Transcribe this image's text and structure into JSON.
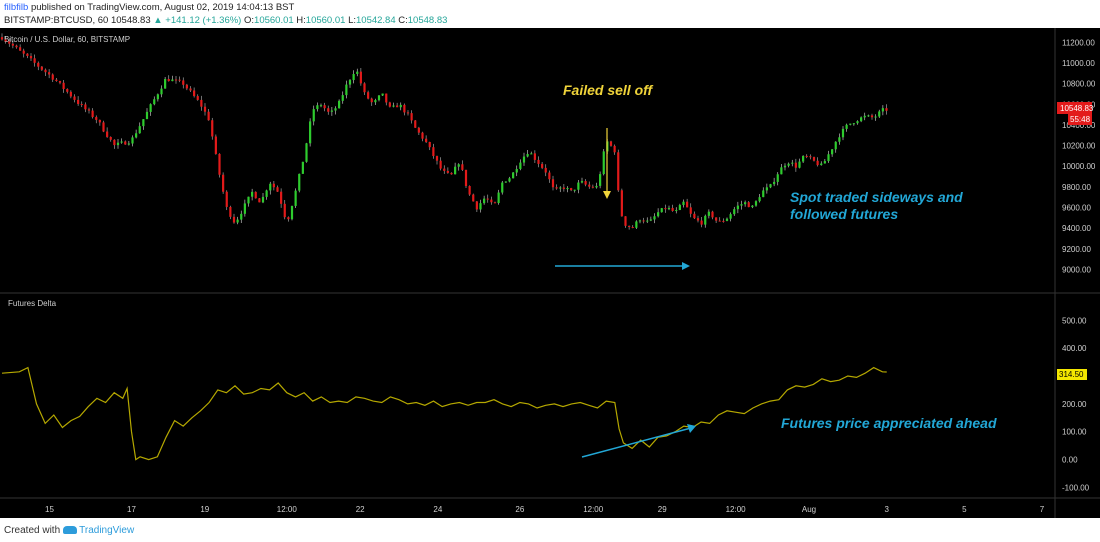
{
  "header": {
    "author": "filbfilb",
    "published_text": "published on TradingView.com, August 02, 2019 14:04:13 BST",
    "symbol": "BITSTAMP:BTCUSD, 60",
    "last": "10548.83",
    "change": "▲ +141.12 (+1.36%)",
    "o_label": "O:",
    "o_value": "10560.01",
    "h_label": "H:",
    "h_value": "10560.01",
    "l_label": "L:",
    "l_value": "10542.84",
    "c_label": "C:",
    "c_value": "10548.83"
  },
  "footer": {
    "created_with": "Created with",
    "brand": "TradingView"
  },
  "colors": {
    "background": "#000000",
    "up": "#2ecc2e",
    "down": "#e31a1a",
    "delta_line": "#b5a800",
    "annotation_yellow": "#f0d43a",
    "annotation_cyan": "#22a7d6",
    "axis_text": "#cfcfcf"
  },
  "chart_data": [
    {
      "type": "candlestick",
      "title": "Bitcoin / U.S. Dollar, 60, BITSTAMP",
      "x_tick_labels": [
        "15",
        "17",
        "19",
        "12:00",
        "22",
        "24",
        "26",
        "12:00",
        "29",
        "12:00",
        "Aug",
        "3",
        "5",
        "7"
      ],
      "y_tick_labels": [
        "11200.00",
        "11000.00",
        "10800.00",
        "10600.00",
        "10400.00",
        "10200.00",
        "10000.00",
        "9800.00",
        "9600.00",
        "9400.00",
        "9200.00",
        "9000.00"
      ],
      "ylim": [
        8840,
        11300
      ],
      "price_label": "10548.83",
      "countdown_label": "55:48",
      "close_path": [
        [
          0,
          11250
        ],
        [
          3,
          11050
        ],
        [
          6,
          10850
        ],
        [
          9,
          10600
        ],
        [
          11,
          10450
        ],
        [
          13,
          10200
        ],
        [
          15,
          10250
        ],
        [
          17,
          10550
        ],
        [
          19,
          10850
        ],
        [
          21,
          10800
        ],
        [
          23,
          10600
        ],
        [
          24,
          10450
        ],
        [
          25,
          10000
        ],
        [
          26,
          9600
        ],
        [
          27,
          9450
        ],
        [
          28,
          9600
        ],
        [
          29,
          9750
        ],
        [
          30,
          9650
        ],
        [
          31,
          9850
        ],
        [
          32,
          9750
        ],
        [
          33,
          9450
        ],
        [
          34,
          9750
        ],
        [
          35,
          10100
        ],
        [
          36,
          10550
        ],
        [
          37,
          10600
        ],
        [
          38,
          10500
        ],
        [
          39,
          10600
        ],
        [
          40,
          10800
        ],
        [
          41,
          10950
        ],
        [
          42,
          10700
        ],
        [
          43,
          10600
        ],
        [
          44,
          10700
        ],
        [
          45,
          10550
        ],
        [
          46,
          10600
        ],
        [
          47,
          10500
        ],
        [
          48,
          10350
        ],
        [
          49,
          10250
        ],
        [
          50,
          10100
        ],
        [
          51,
          9950
        ],
        [
          52,
          9900
        ],
        [
          53,
          10050
        ],
        [
          54,
          9750
        ],
        [
          55,
          9600
        ],
        [
          56,
          9700
        ],
        [
          57,
          9600
        ],
        [
          58,
          9850
        ],
        [
          59,
          9900
        ],
        [
          60,
          10050
        ],
        [
          61,
          10150
        ],
        [
          62,
          10050
        ],
        [
          63,
          9950
        ],
        [
          64,
          9750
        ],
        [
          65,
          9800
        ],
        [
          66,
          9750
        ],
        [
          67,
          9850
        ],
        [
          68,
          9800
        ],
        [
          69,
          9800
        ],
        [
          70,
          10250
        ],
        [
          71,
          10150
        ],
        [
          71.5,
          9650
        ],
        [
          72,
          9450
        ],
        [
          73,
          9400
        ],
        [
          74,
          9500
        ],
        [
          75,
          9450
        ],
        [
          76,
          9550
        ],
        [
          77,
          9600
        ],
        [
          78,
          9550
        ],
        [
          79,
          9650
        ],
        [
          80,
          9500
        ],
        [
          81,
          9450
        ],
        [
          82,
          9550
        ],
        [
          83,
          9450
        ],
        [
          84,
          9500
        ],
        [
          85,
          9600
        ],
        [
          86,
          9650
        ],
        [
          87,
          9600
        ],
        [
          88,
          9750
        ],
        [
          89,
          9800
        ],
        [
          90,
          9950
        ],
        [
          91,
          10050
        ],
        [
          92,
          10000
        ],
        [
          93,
          10100
        ],
        [
          94,
          10050
        ],
        [
          95,
          10000
        ],
        [
          96,
          10150
        ],
        [
          97,
          10300
        ],
        [
          98,
          10400
        ],
        [
          99,
          10450
        ],
        [
          100,
          10480
        ],
        [
          101,
          10470
        ],
        [
          102,
          10540
        ],
        [
          102.5,
          10549
        ]
      ],
      "annotations": [
        {
          "text": "Failed sell off",
          "color": "#f0d43a"
        },
        {
          "text": "Spot traded sideways and",
          "color": "#22a7d6"
        },
        {
          "text": "followed futures",
          "color": "#22a7d6"
        }
      ]
    },
    {
      "type": "line",
      "title": "Futures Delta",
      "y_tick_labels": [
        "500.00",
        "400.00",
        "300.00",
        "200.00",
        "100.00",
        "0.00",
        "-100.00"
      ],
      "ylim": [
        -120,
        580
      ],
      "last_label": "314.50",
      "path": [
        [
          0,
          310
        ],
        [
          2,
          315
        ],
        [
          3,
          330
        ],
        [
          4,
          200
        ],
        [
          5,
          130
        ],
        [
          6,
          160
        ],
        [
          7,
          115
        ],
        [
          8,
          140
        ],
        [
          9,
          155
        ],
        [
          10,
          190
        ],
        [
          11,
          220
        ],
        [
          12,
          205
        ],
        [
          13,
          240
        ],
        [
          14,
          220
        ],
        [
          14.5,
          255
        ],
        [
          15,
          100
        ],
        [
          15.5,
          0
        ],
        [
          16,
          10
        ],
        [
          17,
          0
        ],
        [
          18,
          10
        ],
        [
          19,
          80
        ],
        [
          20,
          140
        ],
        [
          21,
          120
        ],
        [
          22,
          150
        ],
        [
          23,
          175
        ],
        [
          24,
          205
        ],
        [
          25,
          250
        ],
        [
          26,
          240
        ],
        [
          27,
          265
        ],
        [
          28,
          235
        ],
        [
          29,
          240
        ],
        [
          30,
          255
        ],
        [
          31,
          250
        ],
        [
          32,
          275
        ],
        [
          33,
          240
        ],
        [
          34,
          225
        ],
        [
          35,
          240
        ],
        [
          36,
          210
        ],
        [
          37,
          225
        ],
        [
          38,
          205
        ],
        [
          39,
          210
        ],
        [
          40,
          205
        ],
        [
          41,
          225
        ],
        [
          42,
          220
        ],
        [
          43,
          210
        ],
        [
          44,
          205
        ],
        [
          45,
          225
        ],
        [
          46,
          215
        ],
        [
          47,
          200
        ],
        [
          48,
          205
        ],
        [
          49,
          195
        ],
        [
          50,
          210
        ],
        [
          51,
          190
        ],
        [
          52,
          200
        ],
        [
          53,
          205
        ],
        [
          54,
          195
        ],
        [
          55,
          205
        ],
        [
          56,
          205
        ],
        [
          57,
          215
        ],
        [
          58,
          200
        ],
        [
          59,
          190
        ],
        [
          60,
          205
        ],
        [
          61,
          200
        ],
        [
          62,
          185
        ],
        [
          63,
          195
        ],
        [
          64,
          200
        ],
        [
          65,
          190
        ],
        [
          66,
          200
        ],
        [
          67,
          205
        ],
        [
          68,
          195
        ],
        [
          69,
          185
        ],
        [
          70,
          210
        ],
        [
          71,
          205
        ],
        [
          71.5,
          110
        ],
        [
          72,
          60
        ],
        [
          73,
          40
        ],
        [
          74,
          70
        ],
        [
          75,
          45
        ],
        [
          76,
          80
        ],
        [
          77,
          85
        ],
        [
          78,
          100
        ],
        [
          79,
          120
        ],
        [
          80,
          115
        ],
        [
          81,
          135
        ],
        [
          82,
          130
        ],
        [
          83,
          160
        ],
        [
          84,
          175
        ],
        [
          85,
          170
        ],
        [
          86,
          165
        ],
        [
          87,
          185
        ],
        [
          88,
          200
        ],
        [
          89,
          210
        ],
        [
          90,
          215
        ],
        [
          91,
          250
        ],
        [
          92,
          265
        ],
        [
          93,
          260
        ],
        [
          94,
          270
        ],
        [
          95,
          290
        ],
        [
          96,
          280
        ],
        [
          97,
          285
        ],
        [
          98,
          300
        ],
        [
          99,
          295
        ],
        [
          100,
          310
        ],
        [
          101,
          330
        ],
        [
          102,
          315
        ],
        [
          102.5,
          314.5
        ]
      ],
      "annotations": [
        {
          "text": "Futures price appreciated ahead",
          "color": "#22a7d6"
        }
      ]
    }
  ]
}
